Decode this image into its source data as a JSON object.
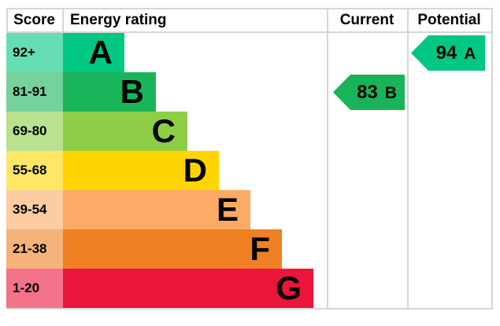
{
  "header": {
    "score": "Score",
    "energy_rating": "Energy rating",
    "current": "Current",
    "potential": "Potential"
  },
  "bands": [
    {
      "score": "92+",
      "letter": "A",
      "color": "#00c781",
      "tint": "#66ddb3"
    },
    {
      "score": "81-91",
      "letter": "B",
      "color": "#19b459",
      "tint": "#75d29b"
    },
    {
      "score": "69-80",
      "letter": "C",
      "color": "#8dce46",
      "tint": "#bae190"
    },
    {
      "score": "55-68",
      "letter": "D",
      "color": "#ffd500",
      "tint": "#ffe666"
    },
    {
      "score": "39-54",
      "letter": "E",
      "color": "#fcaa65",
      "tint": "#fdcca3"
    },
    {
      "score": "21-38",
      "letter": "F",
      "color": "#ef8023",
      "tint": "#f5b37b"
    },
    {
      "score": "1-20",
      "letter": "G",
      "color": "#e9153b",
      "tint": "#f27389"
    }
  ],
  "current": {
    "score": "83",
    "rating": "B",
    "color": "#19b459"
  },
  "potential": {
    "score": "94",
    "rating": "A",
    "color": "#00c781"
  },
  "chart_data": {
    "type": "bar",
    "title": "EPC energy efficiency rating chart",
    "columns": [
      "Score",
      "Energy rating",
      "Current",
      "Potential"
    ],
    "categories": [
      "A",
      "B",
      "C",
      "D",
      "E",
      "F",
      "G"
    ],
    "score_ranges": [
      "92+",
      "81-91",
      "69-80",
      "55-68",
      "39-54",
      "21-38",
      "1-20"
    ],
    "bar_relative_lengths": [
      1,
      2,
      3,
      4,
      5,
      6,
      7
    ],
    "bar_colors": [
      "#00c781",
      "#19b459",
      "#8dce46",
      "#ffd500",
      "#fcaa65",
      "#ef8023",
      "#e9153b"
    ],
    "score_cell_colors": [
      "#66ddb3",
      "#75d29b",
      "#bae190",
      "#ffe666",
      "#fdcca3",
      "#f5b37b",
      "#f27389"
    ],
    "current": {
      "score": 83,
      "rating": "B",
      "band_index": 1
    },
    "potential": {
      "score": 94,
      "rating": "A",
      "band_index": 0
    },
    "legend_position": "none",
    "grid": "column separators only"
  }
}
